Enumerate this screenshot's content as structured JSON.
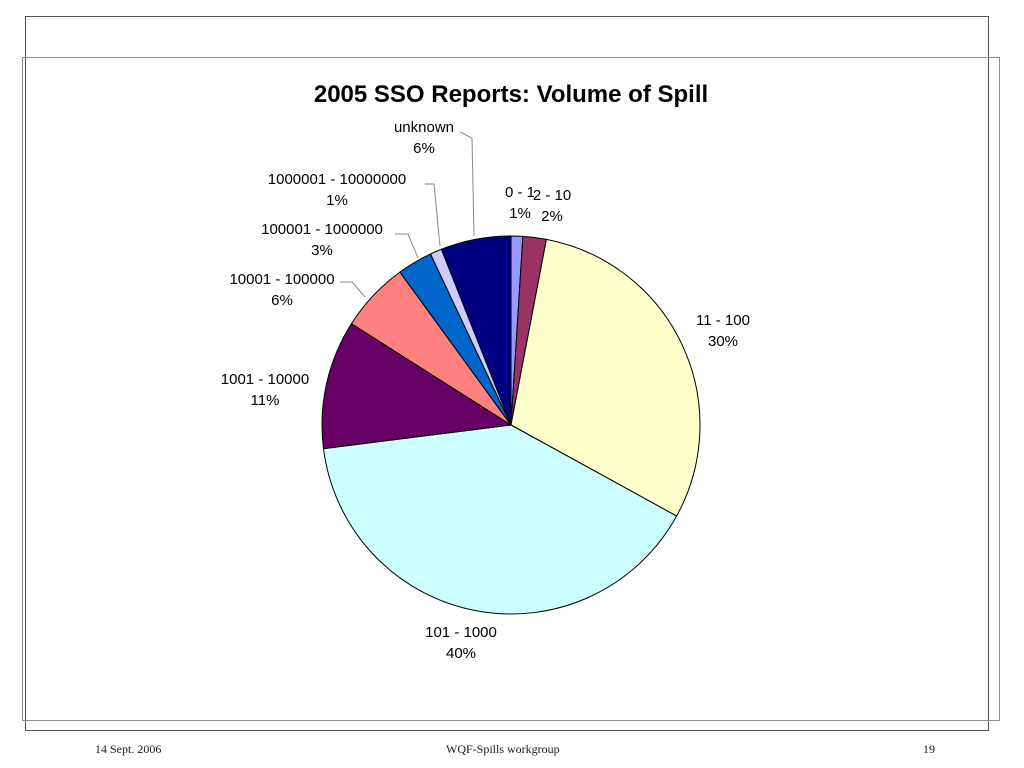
{
  "chart_data": {
    "type": "pie",
    "title": "2005 SSO Reports: Volume of Spill",
    "slices": [
      {
        "label": "0 - 1",
        "value": 1,
        "percent_text": "1%",
        "color": "#9999ff"
      },
      {
        "label": "2 - 10",
        "value": 2,
        "percent_text": "2%",
        "color": "#993366"
      },
      {
        "label": "11 - 100",
        "value": 30,
        "percent_text": "30%",
        "color": "#ffffcc"
      },
      {
        "label": "101 - 1000",
        "value": 40,
        "percent_text": "40%",
        "color": "#ccffff"
      },
      {
        "label": "1001 - 10000",
        "value": 11,
        "percent_text": "11%",
        "color": "#660066"
      },
      {
        "label": "10001 - 100000",
        "value": 6,
        "percent_text": "6%",
        "color": "#ff8080"
      },
      {
        "label": "100001 - 1000000",
        "value": 3,
        "percent_text": "3%",
        "color": "#0066cc"
      },
      {
        "label": "1000001 - 10000000",
        "value": 1,
        "percent_text": "1%",
        "color": "#ccccff"
      },
      {
        "label": "unknown",
        "value": 6,
        "percent_text": "6%",
        "color": "#000080"
      }
    ],
    "start_angle_deg": 0,
    "direction": "clockwise",
    "legend": "none"
  },
  "footer": {
    "date": "14 Sept. 2006",
    "center": "WQF-Spills workgroup",
    "page": "19"
  }
}
